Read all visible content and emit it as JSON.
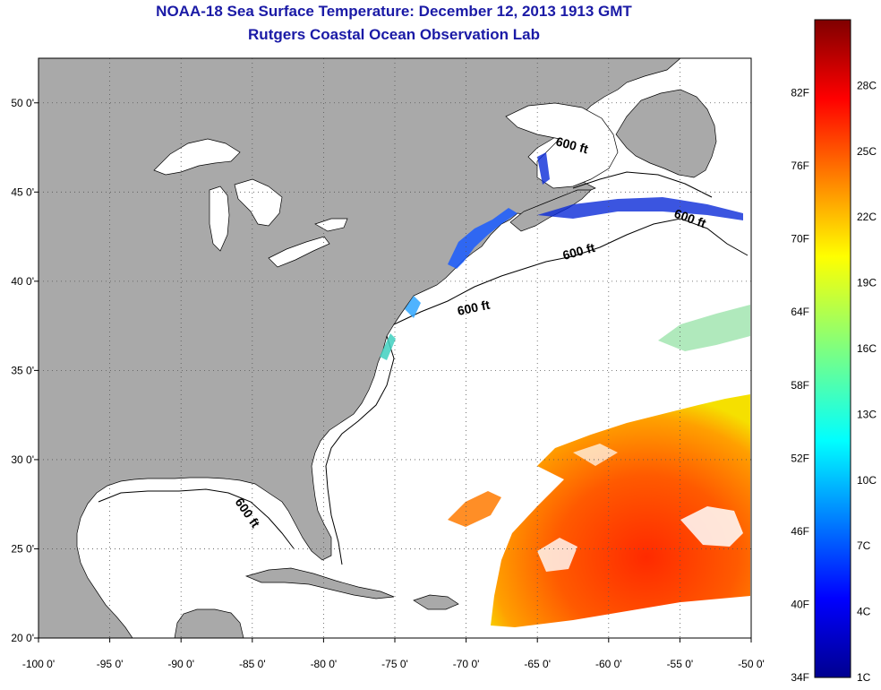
{
  "title": "NOAA-18 Sea Surface Temperature:  December 12, 2013 1913 GMT",
  "subtitle": "Rutgers Coastal Ocean Observation Lab",
  "map": {
    "lon_range": [
      -100,
      -50
    ],
    "lat_range": [
      20,
      52.5
    ],
    "x_ticks": [
      "-100 0'",
      "-95 0'",
      "-90 0'",
      "-85 0'",
      "-80 0'",
      "-75 0'",
      "-70 0'",
      "-65 0'",
      "-60 0'",
      "-55 0'",
      "-50 0'"
    ],
    "y_ticks": [
      "50 0'",
      "45 0'",
      "40 0'",
      "35 0'",
      "30 0'",
      "25 0'",
      "20 0'"
    ],
    "contour_labels": [
      "600 ft",
      "600 ft",
      "600 ft",
      "600 ft",
      "600 ft"
    ],
    "colors": {
      "land": "#a9a9a9",
      "ocean": "#ffffff",
      "title": "#1a1aa6"
    }
  },
  "colorbar": {
    "fahrenheit_labels": [
      "82F",
      "76F",
      "70F",
      "64F",
      "58F",
      "52F",
      "46F",
      "40F",
      "34F"
    ],
    "celsius_labels": [
      "28C",
      "25C",
      "22C",
      "19C",
      "16C",
      "13C",
      "10C",
      "7C",
      "4C",
      "1C"
    ]
  }
}
